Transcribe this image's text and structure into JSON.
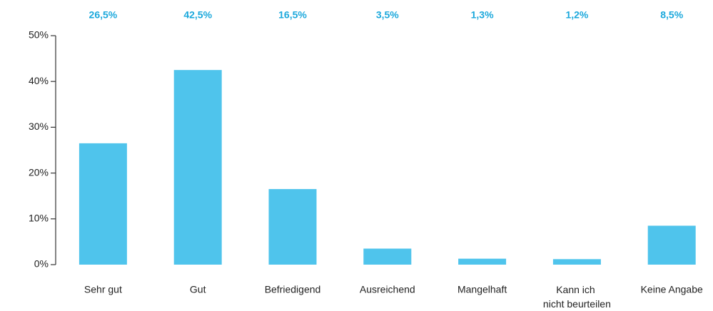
{
  "chart_data": {
    "type": "bar",
    "categories": [
      "Sehr gut",
      "Gut",
      "Befriedigend",
      "Ausreichend",
      "Mangelhaft",
      "Kann ich nicht beurteilen",
      "Keine Angabe"
    ],
    "values": [
      26.5,
      42.5,
      16.5,
      3.5,
      1.3,
      1.2,
      8.5
    ],
    "value_labels": [
      "26,5%",
      "42,5%",
      "16,5%",
      "3,5%",
      "1,3%",
      "1,2%",
      "8,5%"
    ],
    "color": "#4fc4ec",
    "value_label_color": "#1ba8dc",
    "ylim": [
      0,
      50
    ],
    "yticks": [
      {
        "value": 0,
        "label": "0%"
      },
      {
        "value": 10,
        "label": "10%"
      },
      {
        "value": 20,
        "label": "20%"
      },
      {
        "value": 30,
        "label": "30%"
      },
      {
        "value": 40,
        "label": "40%"
      },
      {
        "value": 50,
        "label": "50%"
      }
    ],
    "grid": false
  }
}
